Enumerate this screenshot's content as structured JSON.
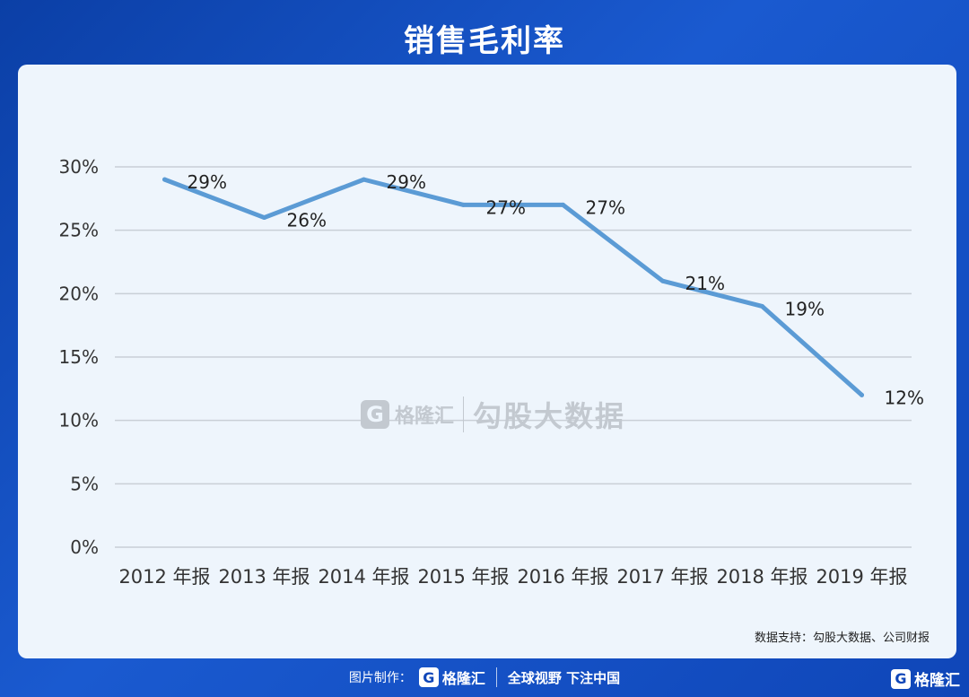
{
  "title": "销售毛利率",
  "source_note": "数据支持：勾股大数据、公司财报",
  "watermark": {
    "logo_letter": "G",
    "brand": "格隆汇",
    "text": "勾股大数据"
  },
  "footer": {
    "label": "图片制作：",
    "logo_letter": "G",
    "brand": "格隆汇",
    "slogan": "全球视野 下注中国"
  },
  "corner": {
    "logo_letter": "G",
    "brand": "格隆汇"
  },
  "colors": {
    "line": "#5b9bd5",
    "grid": "#c9cfd6",
    "background_card": "#eef5fc"
  },
  "chart_data": {
    "type": "line",
    "categories": [
      "2012 年报",
      "2013 年报",
      "2014 年报",
      "2015 年报",
      "2016 年报",
      "2017 年报",
      "2018 年报",
      "2019 年报"
    ],
    "series": [
      {
        "values": [
          29,
          26,
          29,
          27,
          27,
          21,
          19,
          12
        ]
      }
    ],
    "data_labels": [
      "29%",
      "26%",
      "29%",
      "27%",
      "27%",
      "21%",
      "19%",
      "12%"
    ],
    "y_ticks": [
      "0%",
      "5%",
      "10%",
      "15%",
      "20%",
      "25%",
      "30%"
    ],
    "ylim": [
      0,
      30
    ],
    "grid": true,
    "legend": "none"
  }
}
